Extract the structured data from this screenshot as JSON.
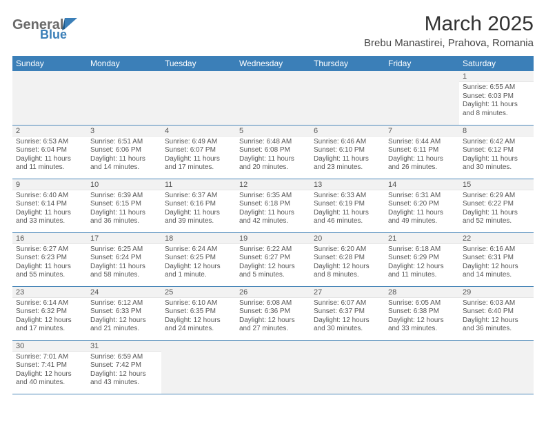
{
  "brand": {
    "name1": "General",
    "name2": "Blue",
    "name1_color": "#6a6a6a",
    "name2_color": "#3b7fb8"
  },
  "title": "March 2025",
  "location": "Brebu Manastirei, Prahova, Romania",
  "header_bg": "#3b7fb8",
  "header_fg": "#ffffff",
  "rule_color": "#4a87b9",
  "daynum_bg": "#f2f2f2",
  "text_color": "#555555",
  "weekdays": [
    "Sunday",
    "Monday",
    "Tuesday",
    "Wednesday",
    "Thursday",
    "Friday",
    "Saturday"
  ],
  "weeks": [
    [
      null,
      null,
      null,
      null,
      null,
      null,
      {
        "n": "1",
        "sr": "Sunrise: 6:55 AM",
        "ss": "Sunset: 6:03 PM",
        "d1": "Daylight: 11 hours",
        "d2": "and 8 minutes."
      }
    ],
    [
      {
        "n": "2",
        "sr": "Sunrise: 6:53 AM",
        "ss": "Sunset: 6:04 PM",
        "d1": "Daylight: 11 hours",
        "d2": "and 11 minutes."
      },
      {
        "n": "3",
        "sr": "Sunrise: 6:51 AM",
        "ss": "Sunset: 6:06 PM",
        "d1": "Daylight: 11 hours",
        "d2": "and 14 minutes."
      },
      {
        "n": "4",
        "sr": "Sunrise: 6:49 AM",
        "ss": "Sunset: 6:07 PM",
        "d1": "Daylight: 11 hours",
        "d2": "and 17 minutes."
      },
      {
        "n": "5",
        "sr": "Sunrise: 6:48 AM",
        "ss": "Sunset: 6:08 PM",
        "d1": "Daylight: 11 hours",
        "d2": "and 20 minutes."
      },
      {
        "n": "6",
        "sr": "Sunrise: 6:46 AM",
        "ss": "Sunset: 6:10 PM",
        "d1": "Daylight: 11 hours",
        "d2": "and 23 minutes."
      },
      {
        "n": "7",
        "sr": "Sunrise: 6:44 AM",
        "ss": "Sunset: 6:11 PM",
        "d1": "Daylight: 11 hours",
        "d2": "and 26 minutes."
      },
      {
        "n": "8",
        "sr": "Sunrise: 6:42 AM",
        "ss": "Sunset: 6:12 PM",
        "d1": "Daylight: 11 hours",
        "d2": "and 30 minutes."
      }
    ],
    [
      {
        "n": "9",
        "sr": "Sunrise: 6:40 AM",
        "ss": "Sunset: 6:14 PM",
        "d1": "Daylight: 11 hours",
        "d2": "and 33 minutes."
      },
      {
        "n": "10",
        "sr": "Sunrise: 6:39 AM",
        "ss": "Sunset: 6:15 PM",
        "d1": "Daylight: 11 hours",
        "d2": "and 36 minutes."
      },
      {
        "n": "11",
        "sr": "Sunrise: 6:37 AM",
        "ss": "Sunset: 6:16 PM",
        "d1": "Daylight: 11 hours",
        "d2": "and 39 minutes."
      },
      {
        "n": "12",
        "sr": "Sunrise: 6:35 AM",
        "ss": "Sunset: 6:18 PM",
        "d1": "Daylight: 11 hours",
        "d2": "and 42 minutes."
      },
      {
        "n": "13",
        "sr": "Sunrise: 6:33 AM",
        "ss": "Sunset: 6:19 PM",
        "d1": "Daylight: 11 hours",
        "d2": "and 46 minutes."
      },
      {
        "n": "14",
        "sr": "Sunrise: 6:31 AM",
        "ss": "Sunset: 6:20 PM",
        "d1": "Daylight: 11 hours",
        "d2": "and 49 minutes."
      },
      {
        "n": "15",
        "sr": "Sunrise: 6:29 AM",
        "ss": "Sunset: 6:22 PM",
        "d1": "Daylight: 11 hours",
        "d2": "and 52 minutes."
      }
    ],
    [
      {
        "n": "16",
        "sr": "Sunrise: 6:27 AM",
        "ss": "Sunset: 6:23 PM",
        "d1": "Daylight: 11 hours",
        "d2": "and 55 minutes."
      },
      {
        "n": "17",
        "sr": "Sunrise: 6:25 AM",
        "ss": "Sunset: 6:24 PM",
        "d1": "Daylight: 11 hours",
        "d2": "and 58 minutes."
      },
      {
        "n": "18",
        "sr": "Sunrise: 6:24 AM",
        "ss": "Sunset: 6:25 PM",
        "d1": "Daylight: 12 hours",
        "d2": "and 1 minute."
      },
      {
        "n": "19",
        "sr": "Sunrise: 6:22 AM",
        "ss": "Sunset: 6:27 PM",
        "d1": "Daylight: 12 hours",
        "d2": "and 5 minutes."
      },
      {
        "n": "20",
        "sr": "Sunrise: 6:20 AM",
        "ss": "Sunset: 6:28 PM",
        "d1": "Daylight: 12 hours",
        "d2": "and 8 minutes."
      },
      {
        "n": "21",
        "sr": "Sunrise: 6:18 AM",
        "ss": "Sunset: 6:29 PM",
        "d1": "Daylight: 12 hours",
        "d2": "and 11 minutes."
      },
      {
        "n": "22",
        "sr": "Sunrise: 6:16 AM",
        "ss": "Sunset: 6:31 PM",
        "d1": "Daylight: 12 hours",
        "d2": "and 14 minutes."
      }
    ],
    [
      {
        "n": "23",
        "sr": "Sunrise: 6:14 AM",
        "ss": "Sunset: 6:32 PM",
        "d1": "Daylight: 12 hours",
        "d2": "and 17 minutes."
      },
      {
        "n": "24",
        "sr": "Sunrise: 6:12 AM",
        "ss": "Sunset: 6:33 PM",
        "d1": "Daylight: 12 hours",
        "d2": "and 21 minutes."
      },
      {
        "n": "25",
        "sr": "Sunrise: 6:10 AM",
        "ss": "Sunset: 6:35 PM",
        "d1": "Daylight: 12 hours",
        "d2": "and 24 minutes."
      },
      {
        "n": "26",
        "sr": "Sunrise: 6:08 AM",
        "ss": "Sunset: 6:36 PM",
        "d1": "Daylight: 12 hours",
        "d2": "and 27 minutes."
      },
      {
        "n": "27",
        "sr": "Sunrise: 6:07 AM",
        "ss": "Sunset: 6:37 PM",
        "d1": "Daylight: 12 hours",
        "d2": "and 30 minutes."
      },
      {
        "n": "28",
        "sr": "Sunrise: 6:05 AM",
        "ss": "Sunset: 6:38 PM",
        "d1": "Daylight: 12 hours",
        "d2": "and 33 minutes."
      },
      {
        "n": "29",
        "sr": "Sunrise: 6:03 AM",
        "ss": "Sunset: 6:40 PM",
        "d1": "Daylight: 12 hours",
        "d2": "and 36 minutes."
      }
    ],
    [
      {
        "n": "30",
        "sr": "Sunrise: 7:01 AM",
        "ss": "Sunset: 7:41 PM",
        "d1": "Daylight: 12 hours",
        "d2": "and 40 minutes."
      },
      {
        "n": "31",
        "sr": "Sunrise: 6:59 AM",
        "ss": "Sunset: 7:42 PM",
        "d1": "Daylight: 12 hours",
        "d2": "and 43 minutes."
      },
      null,
      null,
      null,
      null,
      null
    ]
  ]
}
